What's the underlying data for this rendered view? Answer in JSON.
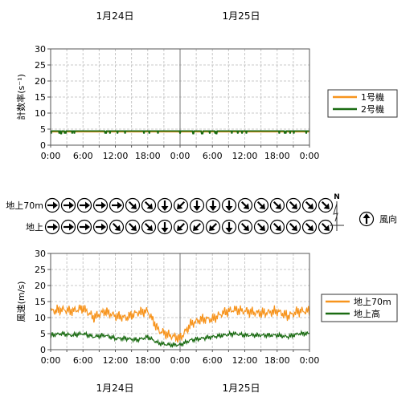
{
  "dates": {
    "top": [
      "1月24日",
      "1月25日"
    ],
    "bottom": [
      "1月24日",
      "1月25日"
    ]
  },
  "x_ticks": [
    "0:00",
    "6:00",
    "12:00",
    "18:00",
    "0:00",
    "6:00",
    "12:00",
    "18:00",
    "0:00"
  ],
  "colors": {
    "orange": "#f7941d",
    "green": "#1a6b12"
  },
  "chart_data": [
    {
      "type": "line",
      "ylabel": "計数率(s⁻¹)",
      "ylim": [
        0,
        30
      ],
      "yticks": [
        "0",
        "5",
        "10",
        "15",
        "20",
        "25",
        "30"
      ],
      "xlim_hours": [
        0,
        48
      ],
      "grid": true,
      "legend": "right",
      "series": [
        {
          "name": "1号機",
          "color": "#f7941d",
          "baseline": 4.2
        },
        {
          "name": "2号機",
          "color": "#1a6b12",
          "baseline": 4.4
        }
      ]
    },
    {
      "type": "line",
      "ylabel": "風速(m/s)",
      "ylim": [
        0,
        30
      ],
      "yticks": [
        "0",
        "5",
        "10",
        "15",
        "20",
        "25",
        "30"
      ],
      "xlim_hours": [
        0,
        48
      ],
      "grid": true,
      "legend": "right",
      "series": [
        {
          "name": "地上70m",
          "color": "#f7941d",
          "hours": [
            0,
            2,
            4,
            6,
            8,
            10,
            12,
            14,
            16,
            18,
            20,
            22,
            24,
            26,
            28,
            30,
            32,
            34,
            36,
            38,
            40,
            42,
            44,
            46,
            48
          ],
          "values": [
            12,
            12.5,
            12,
            13,
            10,
            12,
            10.5,
            10,
            11.5,
            12,
            6,
            4.5,
            3.5,
            8,
            9.5,
            9.5,
            11.5,
            12.5,
            12,
            11.5,
            11.5,
            12,
            10.5,
            12,
            12
          ]
        },
        {
          "name": "地上高",
          "color": "#1a6b12",
          "hours": [
            0,
            2,
            4,
            6,
            8,
            10,
            12,
            14,
            16,
            18,
            20,
            22,
            24,
            26,
            28,
            30,
            32,
            34,
            36,
            38,
            40,
            42,
            44,
            46,
            48
          ],
          "values": [
            4.5,
            5,
            4.5,
            5,
            4,
            4.5,
            3.5,
            3.5,
            3,
            4,
            2,
            1.5,
            1.5,
            3,
            3.5,
            4,
            4.5,
            5,
            4.5,
            4.5,
            4.5,
            4.5,
            4,
            5,
            5
          ]
        }
      ]
    }
  ],
  "wind_direction": {
    "rows": [
      {
        "label": "地上70m",
        "directions": [
          "W",
          "W",
          "W",
          "W",
          "W",
          "NW",
          "NW",
          "N",
          "NE",
          "N",
          "N",
          "N",
          "NW",
          "NW",
          "NW",
          "NW",
          "NW",
          "NW"
        ]
      },
      {
        "label": "地上",
        "directions": [
          "W",
          "W",
          "W",
          "W",
          "NW",
          "NW",
          "NW",
          "N",
          "NE",
          "NE",
          "NE",
          "N",
          "NW",
          "NW",
          "NW",
          "NW",
          "NW",
          "NW"
        ]
      }
    ],
    "compass_label": "N",
    "legend_direction": "S",
    "legend_label": "風向"
  }
}
